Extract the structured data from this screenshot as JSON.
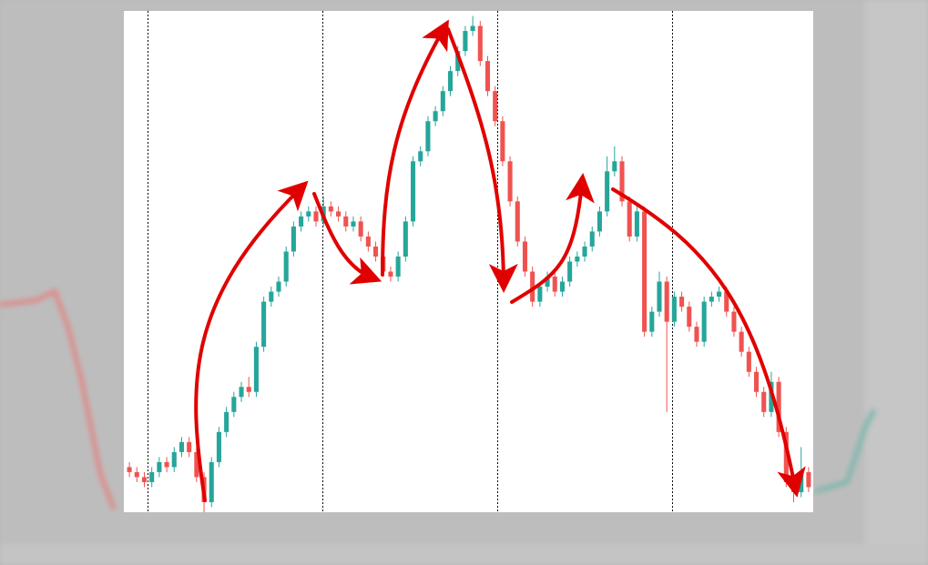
{
  "chart_data": {
    "type": "candlestick",
    "open": [
      9,
      8,
      7,
      6,
      8,
      10,
      9,
      12,
      14,
      12,
      7,
      2,
      10,
      16,
      20,
      23,
      25,
      24,
      33,
      42,
      44,
      46,
      52,
      57,
      59,
      60,
      58,
      61,
      60,
      59,
      57,
      58,
      55,
      53,
      51,
      48,
      47,
      51,
      58,
      70,
      72,
      78,
      80,
      84,
      88,
      92,
      96,
      97,
      90,
      84,
      78,
      70,
      62,
      54,
      48,
      42,
      45,
      47,
      44,
      46,
      50,
      51,
      53,
      56,
      60,
      68,
      70,
      62,
      55,
      60,
      36,
      40,
      46,
      38,
      43,
      41,
      37,
      34,
      42,
      43,
      44,
      40,
      36,
      32,
      28,
      24,
      20,
      26,
      16,
      6,
      4,
      8
    ],
    "high": [
      10,
      9,
      8,
      9,
      11,
      11,
      13,
      15,
      15,
      13,
      8,
      11,
      17,
      21,
      24,
      26,
      27,
      34,
      43,
      45,
      47,
      53,
      58,
      60,
      61,
      61,
      63,
      62,
      61,
      60,
      59,
      59,
      56,
      54,
      52,
      49,
      52,
      59,
      71,
      73,
      79,
      81,
      85,
      89,
      93,
      97,
      99,
      98,
      91,
      85,
      79,
      71,
      63,
      55,
      49,
      46,
      48,
      48,
      47,
      51,
      52,
      54,
      57,
      61,
      71,
      73,
      71,
      63,
      61,
      61,
      41,
      48,
      47,
      44,
      44,
      42,
      38,
      43,
      44,
      45,
      45,
      41,
      37,
      33,
      29,
      25,
      28,
      27,
      17,
      7,
      13,
      9
    ],
    "low": [
      7,
      6,
      5,
      5,
      7,
      8,
      8,
      11,
      11,
      6,
      0,
      1,
      9,
      15,
      19,
      22,
      23,
      23,
      32,
      41,
      43,
      45,
      51,
      56,
      58,
      57,
      57,
      59,
      58,
      56,
      56,
      54,
      52,
      50,
      47,
      46,
      46,
      50,
      57,
      69,
      71,
      77,
      79,
      83,
      87,
      91,
      95,
      89,
      83,
      77,
      69,
      61,
      53,
      47,
      41,
      41,
      44,
      43,
      43,
      45,
      49,
      50,
      52,
      55,
      59,
      67,
      61,
      54,
      54,
      35,
      35,
      39,
      20,
      37,
      40,
      36,
      33,
      33,
      41,
      42,
      39,
      35,
      31,
      27,
      23,
      19,
      19,
      15,
      5,
      2,
      3,
      4
    ],
    "close": [
      8,
      7,
      6,
      8,
      10,
      9,
      12,
      14,
      12,
      7,
      2,
      10,
      16,
      20,
      23,
      25,
      24,
      33,
      42,
      44,
      46,
      52,
      57,
      59,
      60,
      58,
      61,
      60,
      59,
      57,
      58,
      55,
      53,
      51,
      48,
      47,
      51,
      58,
      70,
      72,
      78,
      80,
      84,
      88,
      92,
      96,
      97,
      90,
      84,
      78,
      70,
      62,
      54,
      48,
      42,
      45,
      47,
      44,
      46,
      50,
      51,
      53,
      56,
      60,
      68,
      70,
      62,
      55,
      60,
      36,
      40,
      46,
      38,
      43,
      41,
      37,
      34,
      42,
      43,
      44,
      40,
      36,
      32,
      28,
      24,
      20,
      26,
      16,
      6,
      4,
      8,
      5
    ],
    "up_color": "#26a69a",
    "down_color": "#ef5350",
    "ylim": [
      0,
      100
    ]
  }
}
